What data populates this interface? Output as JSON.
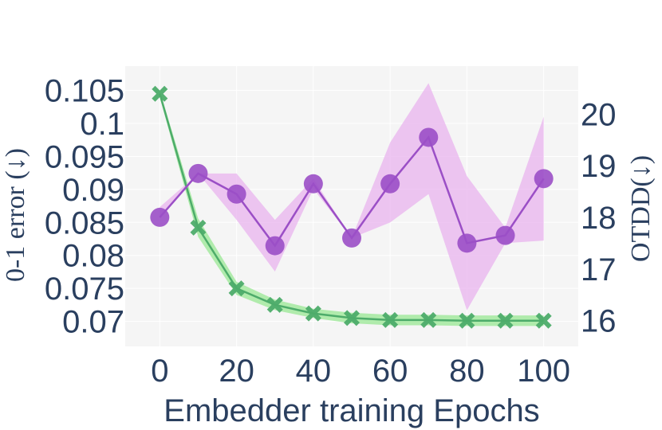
{
  "chart_data": {
    "type": "line",
    "xlabel": "Embedder training Epochs",
    "ylabel_left": "0-1 error (↓)",
    "ylabel_right": "OTDD(↓)",
    "x": [
      0,
      10,
      20,
      30,
      40,
      50,
      60,
      70,
      80,
      90,
      100
    ],
    "x_ticks": [
      0,
      20,
      40,
      60,
      80,
      100
    ],
    "x_tick_labels": [
      "0",
      "20",
      "40",
      "60",
      "80",
      "100"
    ],
    "xlim": [
      -9,
      109
    ],
    "ylim_left": [
      0.0662,
      0.1087
    ],
    "y_left_ticks": [
      0.07,
      0.075,
      0.08,
      0.085,
      0.09,
      0.095,
      0.1,
      0.105
    ],
    "y_left_tick_labels": [
      "0.07",
      "0.075",
      "0.08",
      "0.085",
      "0.09",
      "0.095",
      "0.1",
      "0.105"
    ],
    "ylim_right": [
      15.5,
      20.93
    ],
    "y_right_ticks": [
      16,
      17,
      18,
      19,
      20
    ],
    "y_right_tick_labels": [
      "16",
      "17",
      "18",
      "19",
      "20"
    ],
    "grid": true,
    "series": [
      {
        "axis": "left",
        "marker": "x",
        "color": "#4dac6a",
        "band_color": "#9fe89a",
        "values": [
          0.1045,
          0.0842,
          0.075,
          0.0725,
          0.0712,
          0.0705,
          0.0702,
          0.0702,
          0.0701,
          0.0701,
          0.0701
        ],
        "lower": [
          0.104,
          0.0828,
          0.074,
          0.0717,
          0.0705,
          0.0697,
          0.0694,
          0.0694,
          0.0693,
          0.0693,
          0.0693
        ],
        "upper": [
          0.105,
          0.0856,
          0.076,
          0.0733,
          0.0719,
          0.0713,
          0.071,
          0.071,
          0.0709,
          0.0709,
          0.0709
        ]
      },
      {
        "axis": "right",
        "marker": "circle",
        "color": "#9b4fc6",
        "band_color": "#eab8ef",
        "values": [
          18.0,
          18.85,
          18.45,
          17.45,
          18.65,
          17.6,
          18.65,
          19.55,
          17.5,
          17.65,
          18.75
        ],
        "lower": [
          18.0,
          18.85,
          17.95,
          16.95,
          18.55,
          17.6,
          17.9,
          18.45,
          16.2,
          17.5,
          17.55
        ],
        "upper": [
          18.2,
          18.85,
          18.85,
          17.95,
          18.75,
          17.6,
          19.45,
          20.6,
          18.8,
          17.8,
          19.95
        ]
      }
    ]
  }
}
